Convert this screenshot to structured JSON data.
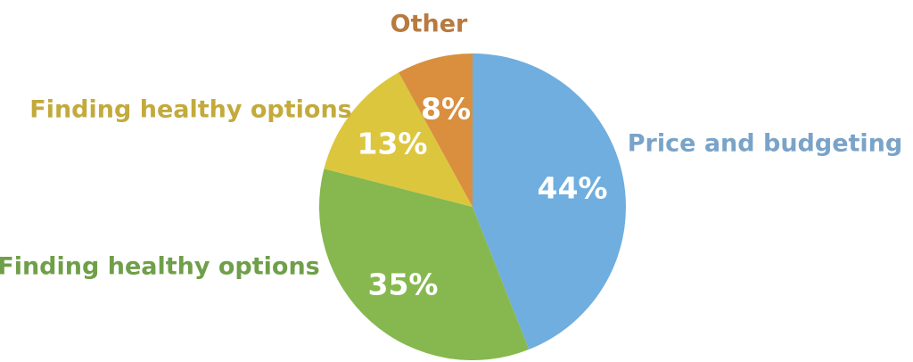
{
  "chart_data": {
    "type": "pie",
    "start": "12 o'clock",
    "direction": "clockwise",
    "slices": [
      {
        "label": "Price and budgeting",
        "value": 44,
        "value_label": "44%",
        "color": "#6faedf",
        "label_color": "#7aa3c8"
      },
      {
        "label": "Finding healthy options",
        "value": 35,
        "value_label": "35%",
        "color": "#86b84f",
        "label_color": "#6f9f49"
      },
      {
        "label": "Finding healthy options",
        "value": 13,
        "value_label": "13%",
        "color": "#dcc63e",
        "label_color": "#c3aa3c"
      },
      {
        "label": "Other",
        "value": 8,
        "value_label": "8%",
        "color": "#d98f3e",
        "label_color": "#b87a3e"
      }
    ]
  }
}
